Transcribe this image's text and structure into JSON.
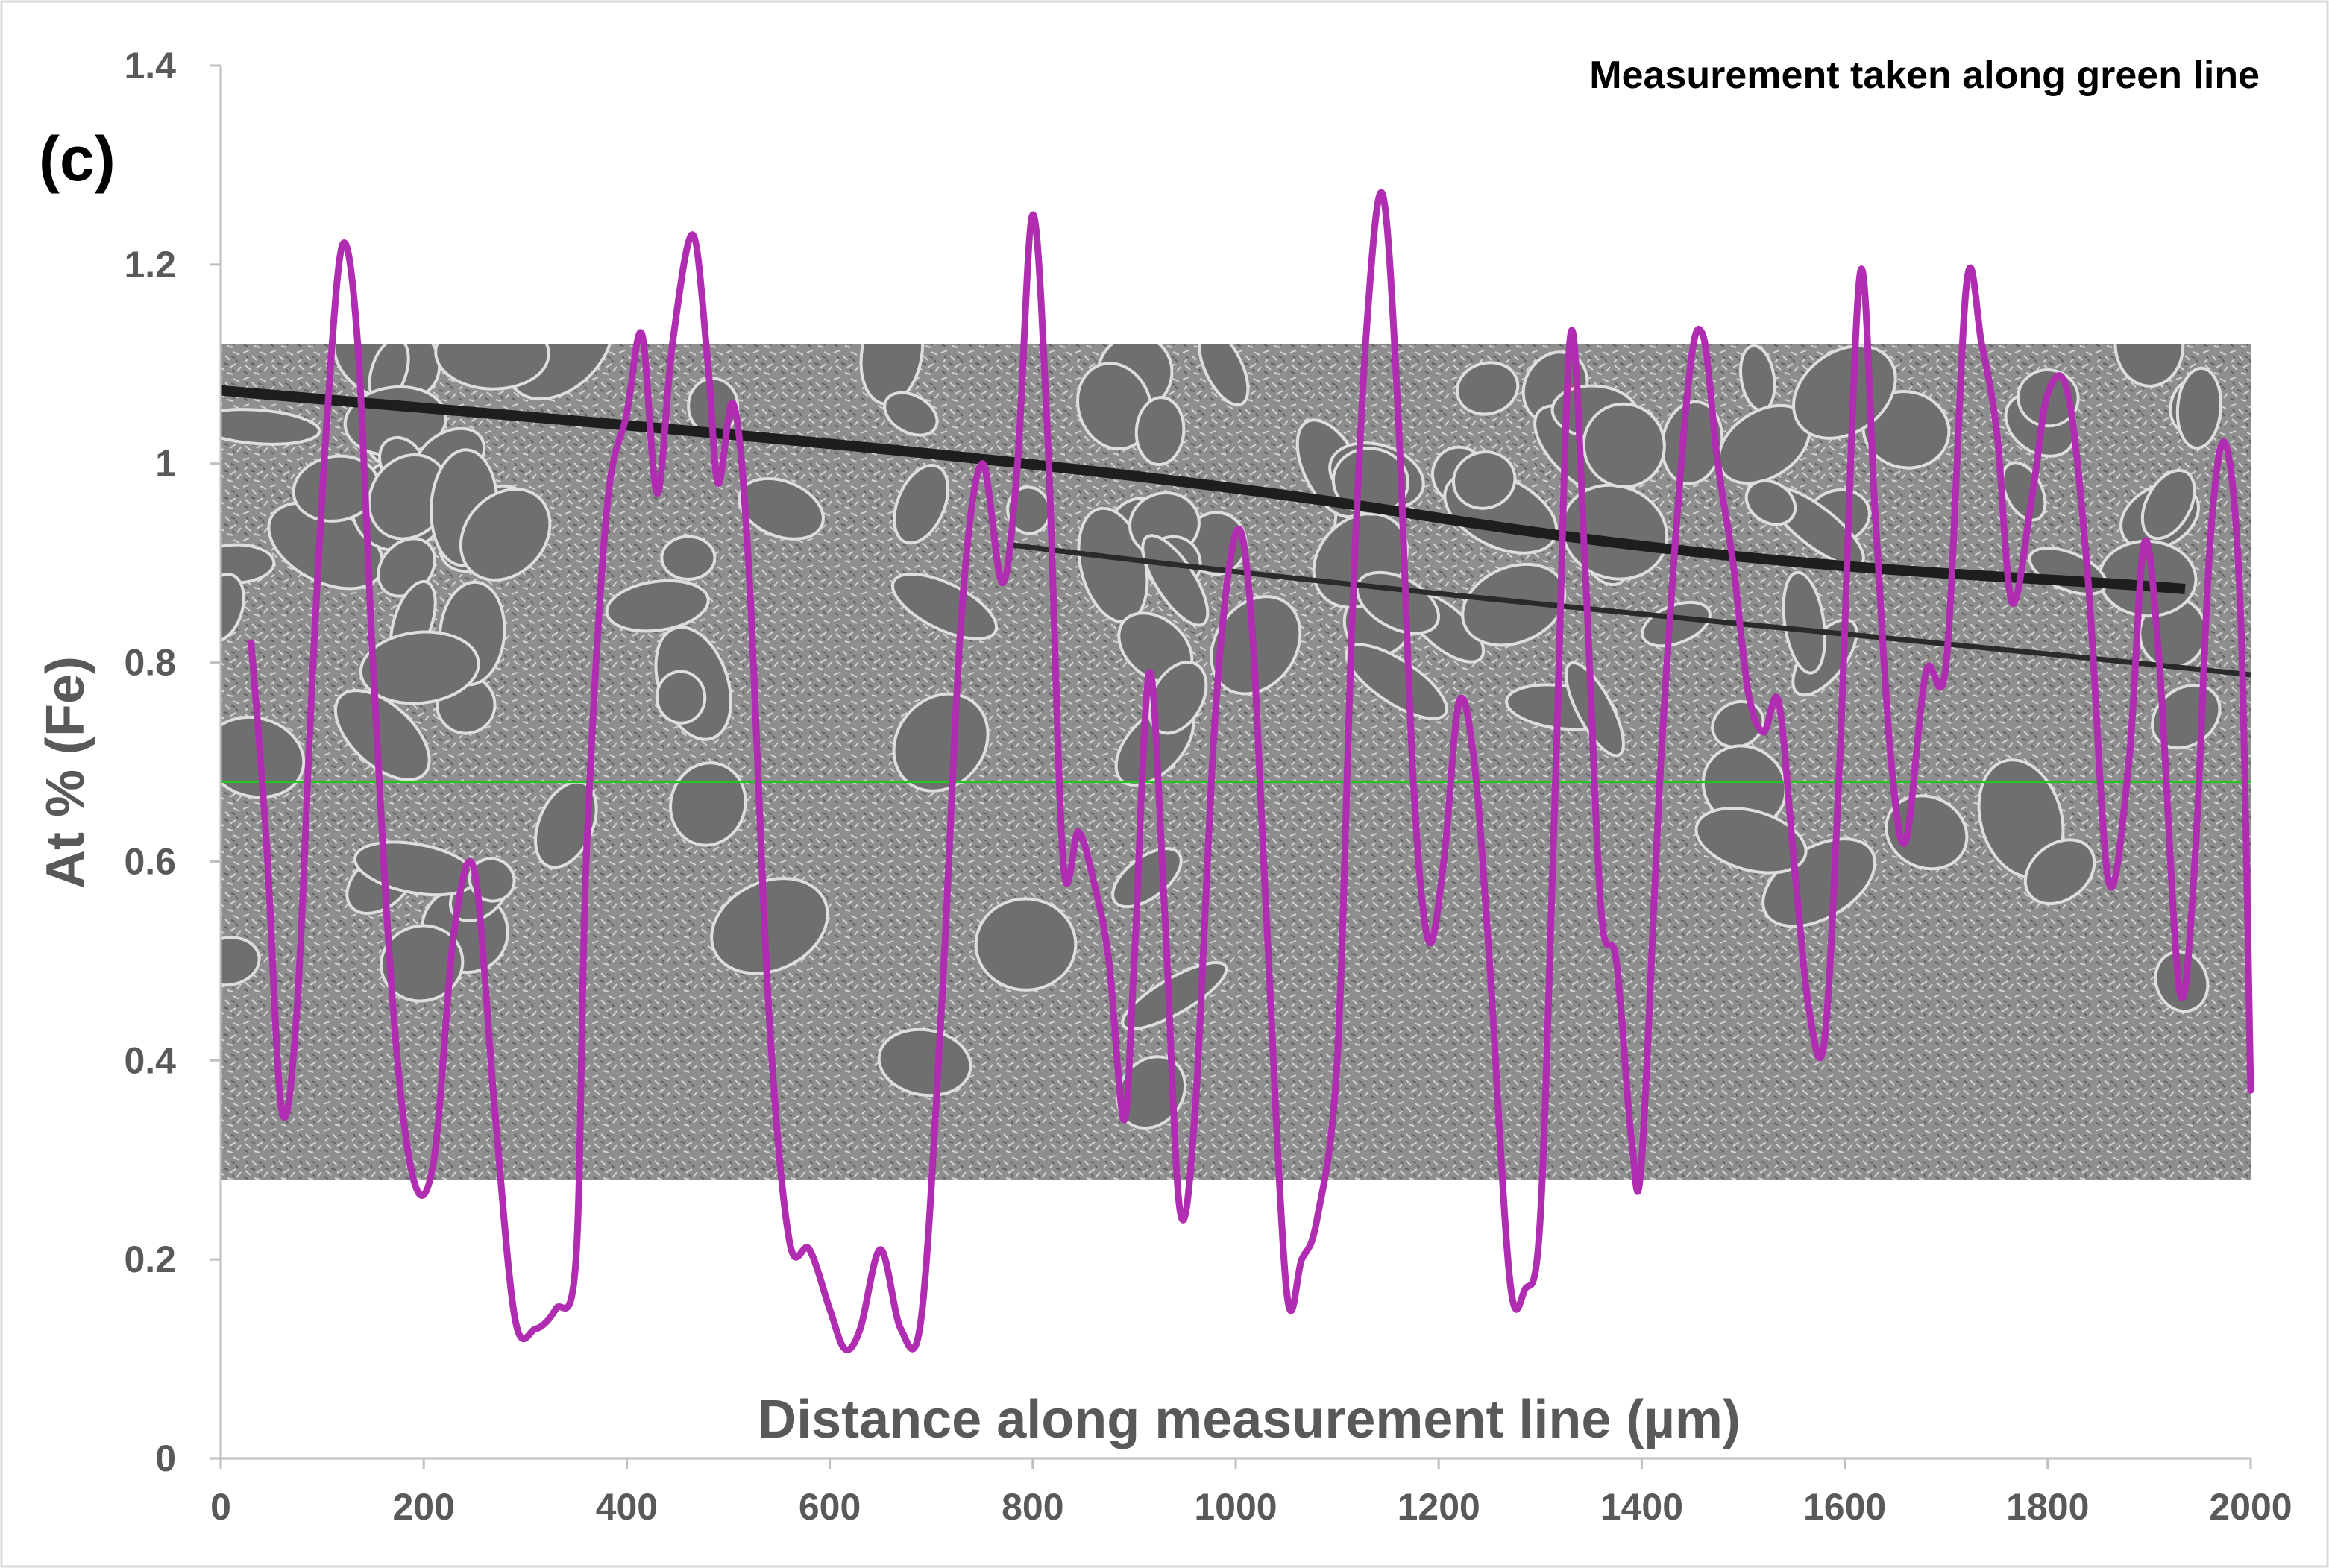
{
  "panel_label": "(c)",
  "annotation": "Measurement taken along green line",
  "chart_data": {
    "type": "line",
    "xlabel": "Distance along measurement line (µm)",
    "ylabel": "At % (Fe)",
    "xlim": [
      0,
      2000
    ],
    "ylim": [
      0,
      1.4
    ],
    "xticks": [
      0,
      200,
      400,
      600,
      800,
      1000,
      1200,
      1400,
      1600,
      1800,
      2000
    ],
    "yticks": [
      0,
      0.2,
      0.4,
      0.6,
      0.8,
      1,
      1.2,
      1.4
    ],
    "xtick_labels": [
      "0",
      "200",
      "400",
      "600",
      "800",
      "1000",
      "1200",
      "1400",
      "1600",
      "1800",
      "2000"
    ],
    "ytick_labels": [
      "0",
      "0.2",
      "0.4",
      "0.6",
      "0.8",
      "1",
      "1.2",
      "1.4"
    ],
    "grid": false,
    "colors": {
      "series": "#b02cb0",
      "measurement_line": "#22c322",
      "axis": "#bfbfbf",
      "text": "#595959"
    },
    "background_image": {
      "type": "SEM micrograph",
      "y_range": [
        0.28,
        1.12
      ],
      "measurement_line_y": 0.68
    },
    "series": [
      {
        "x": [
          30,
          45,
          60,
          75,
          90,
          105,
          120,
          135,
          150,
          170,
          190,
          210,
          230,
          250,
          270,
          290,
          310,
          330,
          350,
          360,
          380,
          400,
          415,
          430,
          445,
          465,
          480,
          490,
          505,
          520,
          540,
          560,
          580,
          600,
          615,
          630,
          650,
          670,
          690,
          710,
          730,
          750,
          770,
          785,
          800,
          815,
          830,
          845,
          860,
          875,
          890,
          900,
          915,
          930,
          945,
          960,
          980,
          1000,
          1015,
          1030,
          1050,
          1065,
          1080,
          1100,
          1115,
          1130,
          1145,
          1160,
          1175,
          1190,
          1205,
          1220,
          1235,
          1250,
          1270,
          1285,
          1300,
          1315,
          1330,
          1345,
          1360,
          1375,
          1390,
          1400,
          1420,
          1445,
          1460,
          1475,
          1490,
          1505,
          1520,
          1535,
          1550,
          1565,
          1580,
          1595,
          1615,
          1630,
          1645,
          1660,
          1680,
          1700,
          1720,
          1735,
          1750,
          1765,
          1785,
          1800,
          1820,
          1840,
          1860,
          1880,
          1895,
          1910,
          1930,
          1945,
          1960,
          1975,
          1990,
          2000
        ],
        "y": [
          0.82,
          0.62,
          0.35,
          0.45,
          0.78,
          1.05,
          1.22,
          1.12,
          0.8,
          0.45,
          0.28,
          0.3,
          0.53,
          0.59,
          0.35,
          0.14,
          0.13,
          0.15,
          0.2,
          0.6,
          0.95,
          1.05,
          1.13,
          0.97,
          1.12,
          1.23,
          1.1,
          0.98,
          1.06,
          0.9,
          0.45,
          0.22,
          0.21,
          0.15,
          0.11,
          0.13,
          0.21,
          0.13,
          0.14,
          0.45,
          0.85,
          1.0,
          0.88,
          1.0,
          1.25,
          1.02,
          0.6,
          0.63,
          0.58,
          0.5,
          0.34,
          0.5,
          0.79,
          0.55,
          0.25,
          0.35,
          0.75,
          0.93,
          0.85,
          0.55,
          0.17,
          0.2,
          0.24,
          0.4,
          0.85,
          1.15,
          1.27,
          1.05,
          0.68,
          0.52,
          0.6,
          0.76,
          0.7,
          0.5,
          0.18,
          0.17,
          0.24,
          0.68,
          1.13,
          0.88,
          0.55,
          0.5,
          0.32,
          0.3,
          0.72,
          1.07,
          1.13,
          1.0,
          0.9,
          0.77,
          0.73,
          0.76,
          0.6,
          0.45,
          0.42,
          0.7,
          1.19,
          0.95,
          0.71,
          0.62,
          0.79,
          0.8,
          1.18,
          1.12,
          1.03,
          0.86,
          0.97,
          1.07,
          1.07,
          0.88,
          0.58,
          0.7,
          0.92,
          0.8,
          0.47,
          0.6,
          0.92,
          1.02,
          0.85,
          0.37
        ]
      }
    ]
  }
}
